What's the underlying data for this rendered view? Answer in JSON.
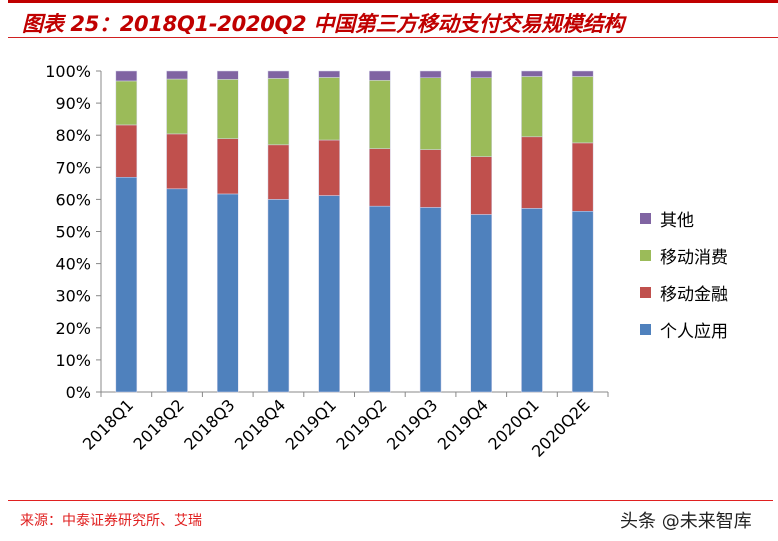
{
  "title": "图表 25：2018Q1-2020Q2 中国第三方移动支付交易规模结构",
  "source": "来源：中泰证券研究所、艾瑞",
  "watermark": "头条 @未来智库",
  "chart_data": {
    "type": "bar",
    "stacked": true,
    "percent": true,
    "categories": [
      "2018Q1",
      "2018Q2",
      "2018Q3",
      "2018Q4",
      "2019Q1",
      "2019Q2",
      "2019Q3",
      "2019Q4",
      "2020Q1",
      "2020Q2E"
    ],
    "series": [
      {
        "name": "个人应用",
        "color": "#4f81bd",
        "values": [
          66.9,
          63.3,
          61.7,
          60.0,
          61.2,
          57.9,
          57.5,
          55.3,
          57.2,
          56.3
        ]
      },
      {
        "name": "移动金融",
        "color": "#c0504d",
        "values": [
          16.3,
          17.1,
          17.2,
          17.0,
          17.3,
          17.9,
          18.0,
          18.0,
          22.3,
          21.3
        ]
      },
      {
        "name": "移动消费",
        "color": "#9bbb59",
        "values": [
          13.7,
          17.1,
          18.5,
          20.7,
          19.5,
          21.3,
          22.4,
          24.6,
          18.8,
          20.7
        ]
      },
      {
        "name": "其他",
        "color": "#8064a2",
        "values": [
          3.1,
          2.5,
          2.6,
          2.3,
          2.0,
          2.9,
          2.1,
          2.1,
          1.7,
          1.7
        ]
      }
    ],
    "yticks": [
      "0%",
      "10%",
      "20%",
      "30%",
      "40%",
      "50%",
      "60%",
      "70%",
      "80%",
      "90%",
      "100%"
    ],
    "ylim": [
      0,
      100
    ],
    "grid": false,
    "legend_position": "right"
  }
}
